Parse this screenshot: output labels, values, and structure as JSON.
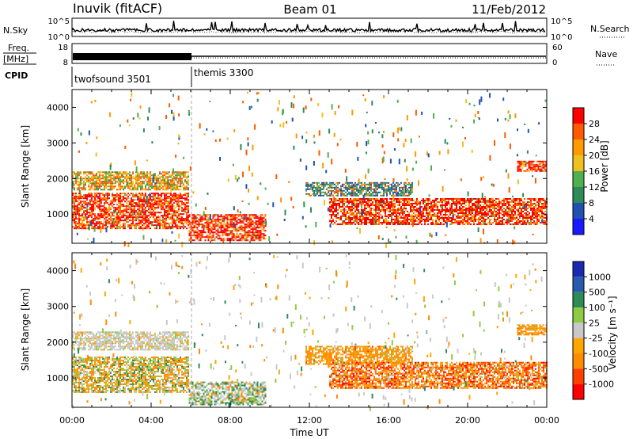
{
  "header": {
    "station": "Inuvik (fitACF)",
    "beam": "Beam 01",
    "date": "11/Feb/2012"
  },
  "strips": {
    "nsky": {
      "label": "N.Sky",
      "ticks": [
        "10^5",
        "10^0"
      ],
      "right_label": "N.Search",
      "right_ticks": [
        "10^5",
        "10^0"
      ]
    },
    "freq": {
      "label_top": "Freq.",
      "label_bottom": "[MHz]",
      "ticks": [
        "18",
        "8"
      ],
      "right_label": "Nave",
      "right_ticks": [
        "60",
        "0"
      ]
    },
    "cpid": {
      "label": "CPID",
      "programs": [
        {
          "name": "twofsound 3501",
          "start_hour": 0,
          "end_hour": 6.08
        },
        {
          "name": "themis 3300",
          "start_hour": 6.08,
          "end_hour": 24
        }
      ]
    }
  },
  "colors": {
    "power": [
      "#1a1aff",
      "#2050b0",
      "#2e8b57",
      "#50b050",
      "#f0c020",
      "#ff9a00",
      "#ff5a00",
      "#ff0000"
    ],
    "velocity": [
      "#ff0000",
      "#ff4000",
      "#ff8c00",
      "#ffa500",
      "#c8c8c8",
      "#8ccc44",
      "#2e8b57",
      "#2a5ab0",
      "#1a2ab0"
    ]
  },
  "chart_data": [
    {
      "type": "heatmap",
      "title": "Power",
      "xlabel": "",
      "ylabel": "Slant Range [km]",
      "xlim": [
        0,
        24
      ],
      "ylim": [
        180,
        4500
      ],
      "x_ticks": [
        "00:00",
        "04:00",
        "08:00",
        "12:00",
        "16:00",
        "20:00",
        "00:00"
      ],
      "y_ticks": [
        1000,
        2000,
        3000,
        4000
      ],
      "colorbar_label": "Power [dB]",
      "colorbar_ticks": [
        "28",
        "24",
        "20",
        "16",
        "12",
        "8",
        "4"
      ],
      "echo_regions": [
        {
          "t0": 0,
          "t1": 5.9,
          "r0": 600,
          "r1": 1600,
          "level": "strong"
        },
        {
          "t0": 0,
          "t1": 5.9,
          "r0": 1700,
          "r1": 2200,
          "level": "medium"
        },
        {
          "t0": 5.9,
          "t1": 9.8,
          "r0": 250,
          "r1": 1000,
          "level": "strong"
        },
        {
          "t0": 11.8,
          "t1": 17.2,
          "r0": 1500,
          "r1": 1900,
          "level": "weak"
        },
        {
          "t0": 13,
          "t1": 24,
          "r0": 700,
          "r1": 1450,
          "level": "strong"
        },
        {
          "t0": 22.5,
          "t1": 24,
          "r0": 2200,
          "r1": 2500,
          "level": "strong"
        }
      ]
    },
    {
      "type": "heatmap",
      "title": "Velocity",
      "xlabel": "Time UT",
      "ylabel": "Slant Range [km]",
      "xlim": [
        0,
        24
      ],
      "ylim": [
        180,
        4500
      ],
      "x_ticks": [
        "00:00",
        "04:00",
        "08:00",
        "12:00",
        "16:00",
        "20:00",
        "00:00"
      ],
      "y_ticks": [
        1000,
        2000,
        3000,
        4000
      ],
      "colorbar_label": "Velocity [m s⁻¹]",
      "colorbar_ticks": [
        "1000",
        "500",
        "100",
        "25",
        "-25",
        "-100",
        "-500",
        "-1000"
      ],
      "echo_regions": [
        {
          "t0": 0,
          "t1": 5.9,
          "r0": 600,
          "r1": 1600,
          "level": "mixed-orange-green"
        },
        {
          "t0": 0,
          "t1": 5.9,
          "r0": 1800,
          "r1": 2300,
          "level": "grey"
        },
        {
          "t0": 5.9,
          "t1": 9.8,
          "r0": 250,
          "r1": 900,
          "level": "grey-green"
        },
        {
          "t0": 11.8,
          "t1": 17.2,
          "r0": 1400,
          "r1": 1900,
          "level": "orange"
        },
        {
          "t0": 13,
          "t1": 24,
          "r0": 700,
          "r1": 1450,
          "level": "orange-red"
        },
        {
          "t0": 22.5,
          "t1": 24,
          "r0": 2200,
          "r1": 2500,
          "level": "orange"
        }
      ]
    }
  ]
}
